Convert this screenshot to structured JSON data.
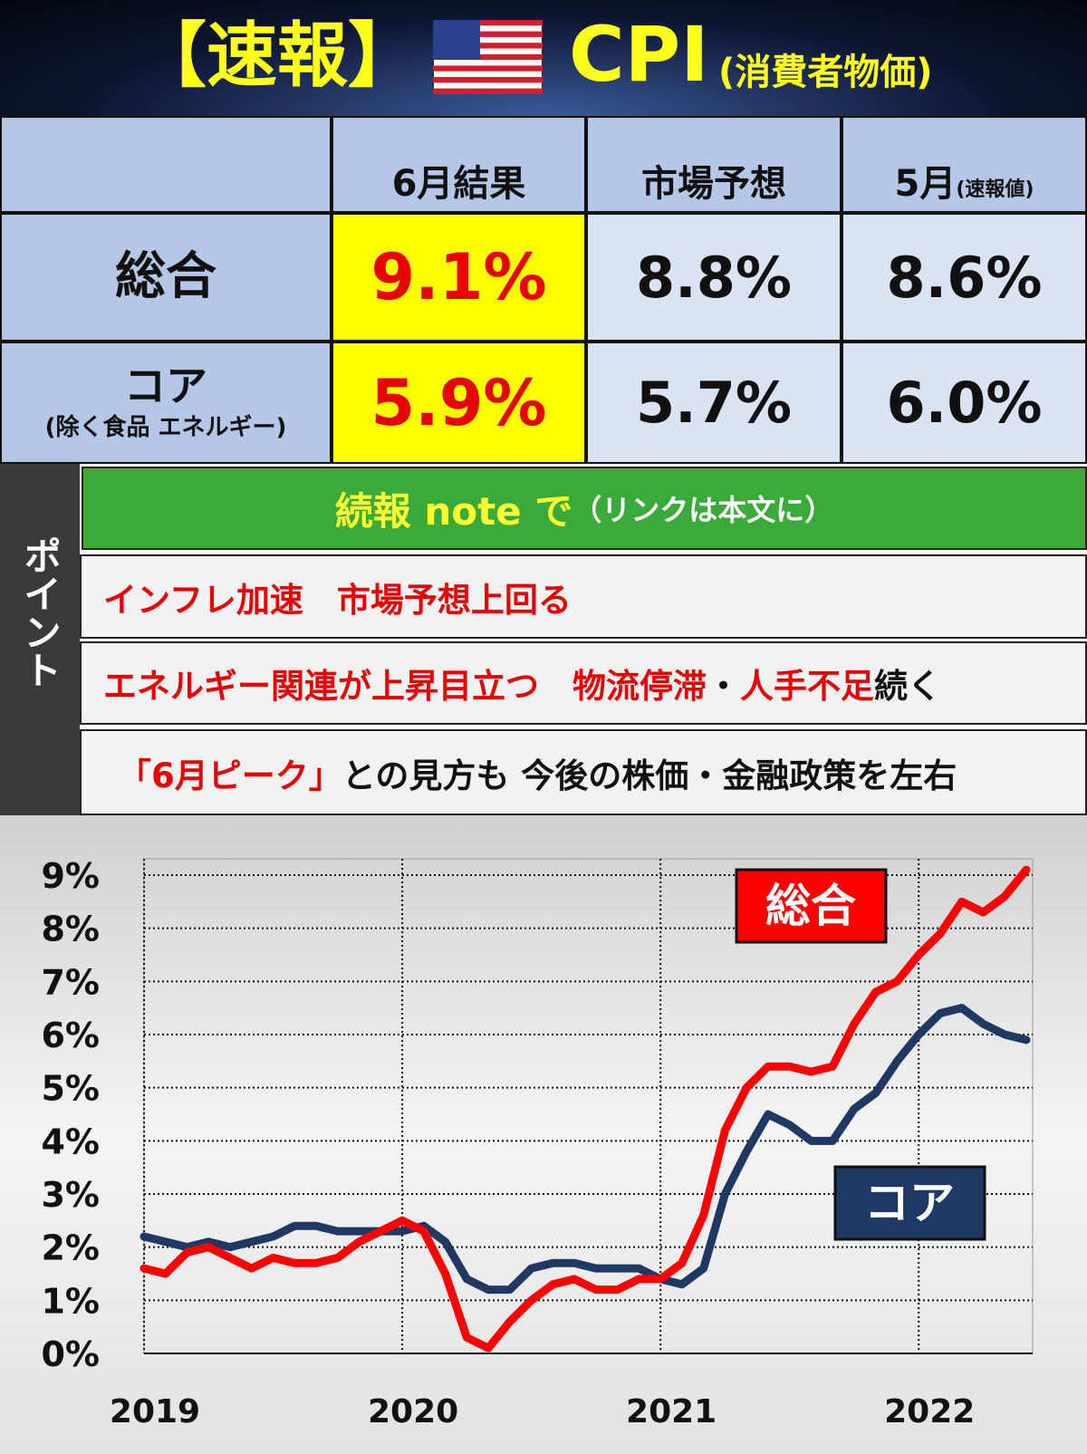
{
  "header": {
    "title": "【速報】",
    "subject": "CPI",
    "subject_note": "(消費者物価)"
  },
  "table": {
    "columns": [
      {
        "label": "6月結果"
      },
      {
        "label": "市場予想"
      },
      {
        "label": "5月",
        "note": "(速報値)"
      }
    ],
    "rows": [
      {
        "label": "総合",
        "values": [
          "9.1%",
          "8.8%",
          "8.6%"
        ]
      },
      {
        "label": "コア",
        "note": "(除く食品 エネルギー)",
        "values": [
          "5.9%",
          "5.7%",
          "6.0%"
        ]
      }
    ]
  },
  "points": {
    "label": "ポイント",
    "link": [
      {
        "text": "続報 note で",
        "color": "#ffff33"
      },
      {
        "text": "（リンクは本文に）",
        "color": "#ffffff"
      }
    ],
    "rows": [
      [
        {
          "text": "インフレ加速　市場予想上回る",
          "color": "#e60000"
        }
      ],
      [
        {
          "text": "エネルギー関連が上昇目立つ　物流停滞",
          "color": "#e60000"
        },
        {
          "text": "・",
          "color": "#111111"
        },
        {
          "text": "人手不足",
          "color": "#e60000"
        },
        {
          "text": "続く",
          "color": "#111111"
        }
      ],
      [
        {
          "text": "「6月ピーク」",
          "color": "#e60000"
        },
        {
          "text": "との見方も  今後の株価・金融政策を左右",
          "color": "#111111"
        }
      ]
    ]
  },
  "chart_data": {
    "type": "line",
    "categories": [
      "2019",
      null,
      null,
      null,
      null,
      null,
      null,
      null,
      null,
      null,
      null,
      null,
      "2020",
      null,
      null,
      null,
      null,
      null,
      null,
      null,
      null,
      null,
      null,
      null,
      "2021",
      null,
      null,
      null,
      null,
      null,
      null,
      null,
      null,
      null,
      null,
      null,
      "2022",
      null,
      null,
      null,
      null,
      null
    ],
    "series": [
      {
        "name": "総合",
        "color": "#ff0000",
        "values": [
          1.6,
          1.5,
          1.9,
          2.0,
          1.8,
          1.6,
          1.8,
          1.7,
          1.7,
          1.8,
          2.1,
          2.3,
          2.5,
          2.3,
          1.5,
          0.3,
          0.1,
          0.6,
          1.0,
          1.3,
          1.4,
          1.2,
          1.2,
          1.4,
          1.4,
          1.7,
          2.6,
          4.2,
          5.0,
          5.4,
          5.4,
          5.3,
          5.4,
          6.2,
          6.8,
          7.0,
          7.5,
          7.9,
          8.5,
          8.3,
          8.6,
          9.1
        ]
      },
      {
        "name": "コア",
        "color": "#1f3864",
        "values": [
          2.2,
          2.1,
          2.0,
          2.1,
          2.0,
          2.1,
          2.2,
          2.4,
          2.4,
          2.3,
          2.3,
          2.3,
          2.3,
          2.4,
          2.1,
          1.4,
          1.2,
          1.2,
          1.6,
          1.7,
          1.7,
          1.6,
          1.6,
          1.6,
          1.4,
          1.3,
          1.6,
          3.0,
          3.8,
          4.5,
          4.3,
          4.0,
          4.0,
          4.6,
          4.9,
          5.5,
          6.0,
          6.4,
          6.5,
          6.2,
          6.0,
          5.9
        ]
      }
    ],
    "ylim": [
      0,
      9
    ],
    "yticks": [
      {
        "value": 0,
        "label": "0%"
      },
      {
        "value": 1,
        "label": "1%"
      },
      {
        "value": 2,
        "label": "2%"
      },
      {
        "value": 3,
        "label": "3%"
      },
      {
        "value": 4,
        "label": "4%"
      },
      {
        "value": 5,
        "label": "5%"
      },
      {
        "value": 6,
        "label": "6%"
      },
      {
        "value": 7,
        "label": "7%"
      },
      {
        "value": 8,
        "label": "8%"
      },
      {
        "value": 9,
        "label": "9%"
      }
    ],
    "grid": true
  }
}
